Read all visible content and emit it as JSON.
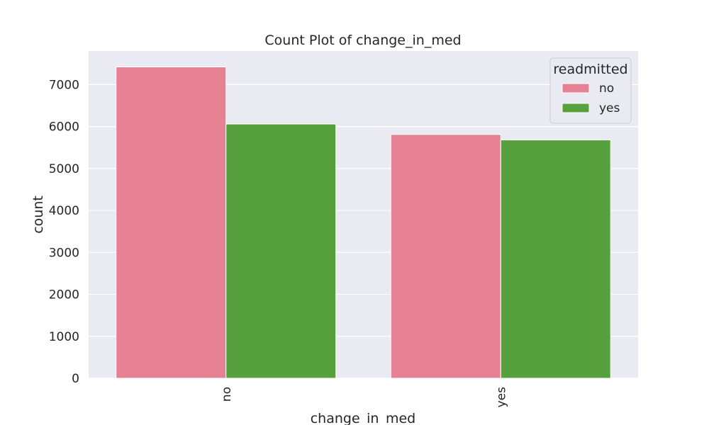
{
  "chart_data": {
    "type": "bar",
    "title": "Count Plot of change_in_med",
    "xlabel": "change_in_med",
    "ylabel": "count",
    "categories": [
      "no",
      "yes"
    ],
    "series": [
      {
        "name": "no",
        "values": [
          7420,
          5810
        ]
      },
      {
        "name": "yes",
        "values": [
          6060,
          5680
        ]
      }
    ],
    "ylim": [
      0,
      7800
    ],
    "yticks": [
      0,
      1000,
      2000,
      3000,
      4000,
      5000,
      6000,
      7000
    ],
    "ytick_labels": [
      "0",
      "1000",
      "2000",
      "3000",
      "4000",
      "5000",
      "6000",
      "7000"
    ],
    "grid": true,
    "legend": {
      "title": "readmitted",
      "placement": "top-right"
    },
    "colors": {
      "no": "#e68193",
      "yes": "#56a13d",
      "background": "#eaeaf2",
      "grid": "#ffffff"
    }
  }
}
